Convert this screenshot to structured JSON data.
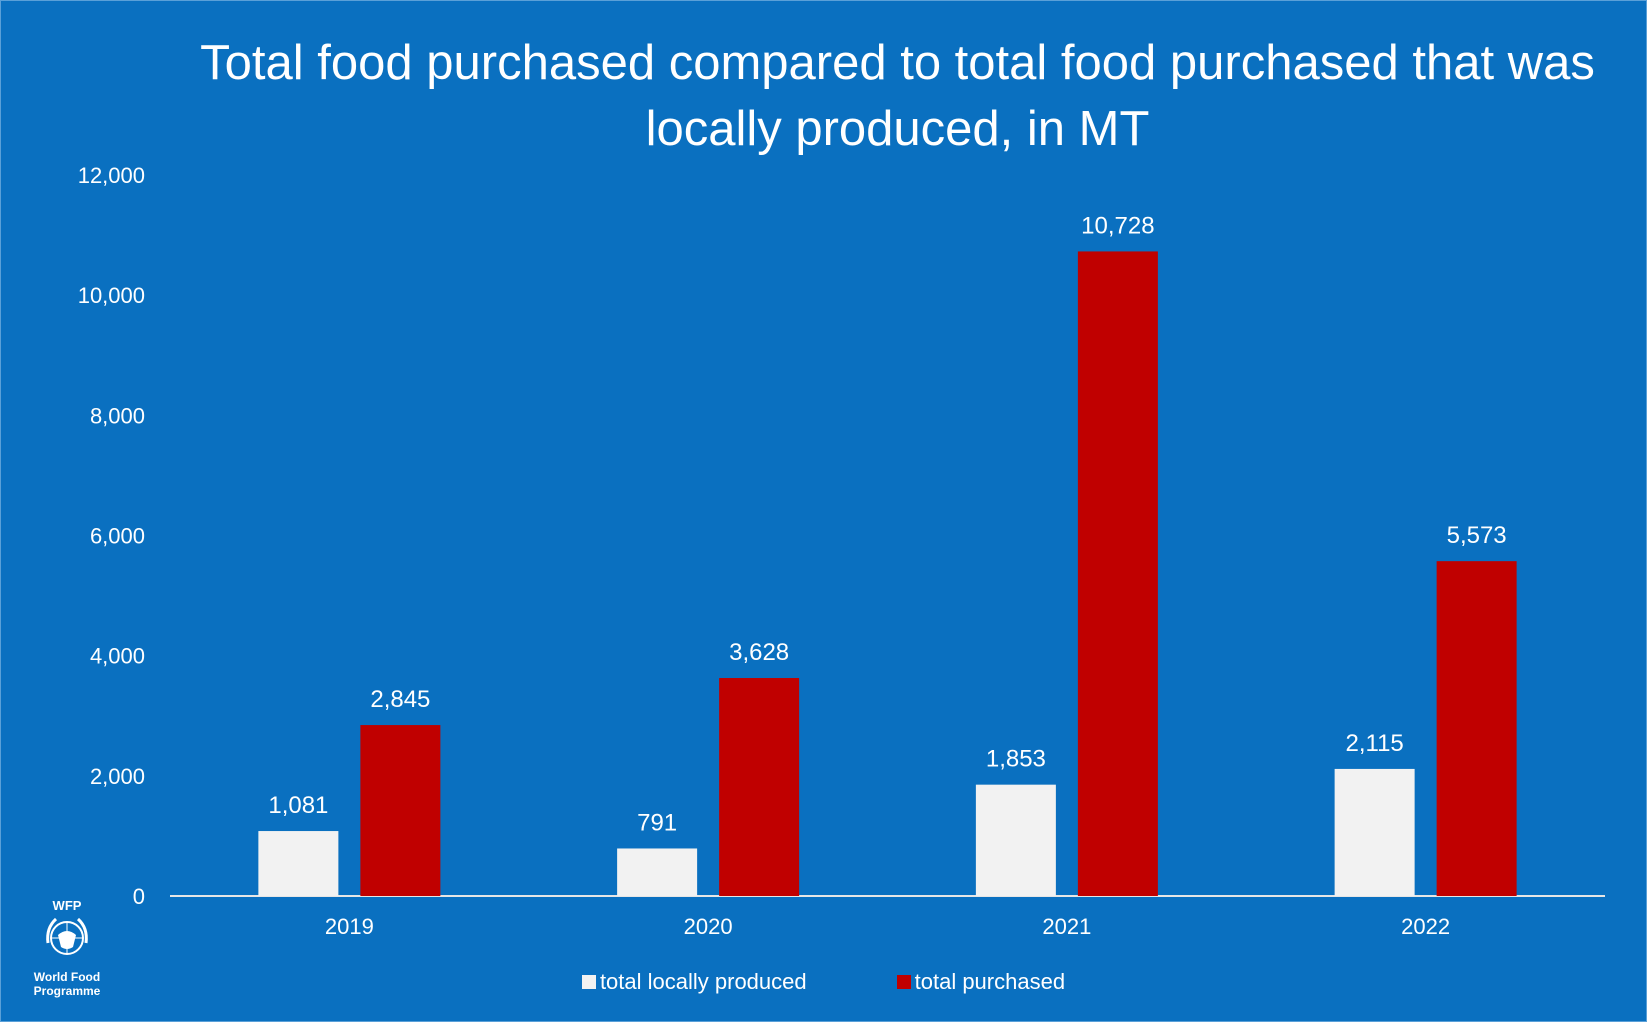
{
  "chart_data": {
    "type": "bar",
    "title": "Total food purchased compared to total food purchased that was locally produced, in MT",
    "categories": [
      "2019",
      "2020",
      "2021",
      "2022"
    ],
    "series": [
      {
        "name": "total locally produced",
        "values": [
          1081,
          791,
          1853,
          2115
        ],
        "labels": [
          "1,081",
          "791",
          "1,853",
          "2,115"
        ],
        "color": "#f2f2f2"
      },
      {
        "name": "total purchased",
        "values": [
          2845,
          3628,
          10728,
          5573
        ],
        "labels": [
          "2,845",
          "3,628",
          "10,728",
          "5,573"
        ],
        "color": "#c00000"
      }
    ],
    "ylim": [
      0,
      12000
    ],
    "yticks": [
      "0",
      "2,000",
      "4,000",
      "6,000",
      "8,000",
      "10,000",
      "12,000"
    ],
    "grid": false,
    "legend": "bottom-center"
  },
  "logo": {
    "top_text": "WFP",
    "bottom_text": "World Food Programme"
  },
  "colors": {
    "background": "#0a70c0",
    "axis": "#e6e6e6"
  }
}
